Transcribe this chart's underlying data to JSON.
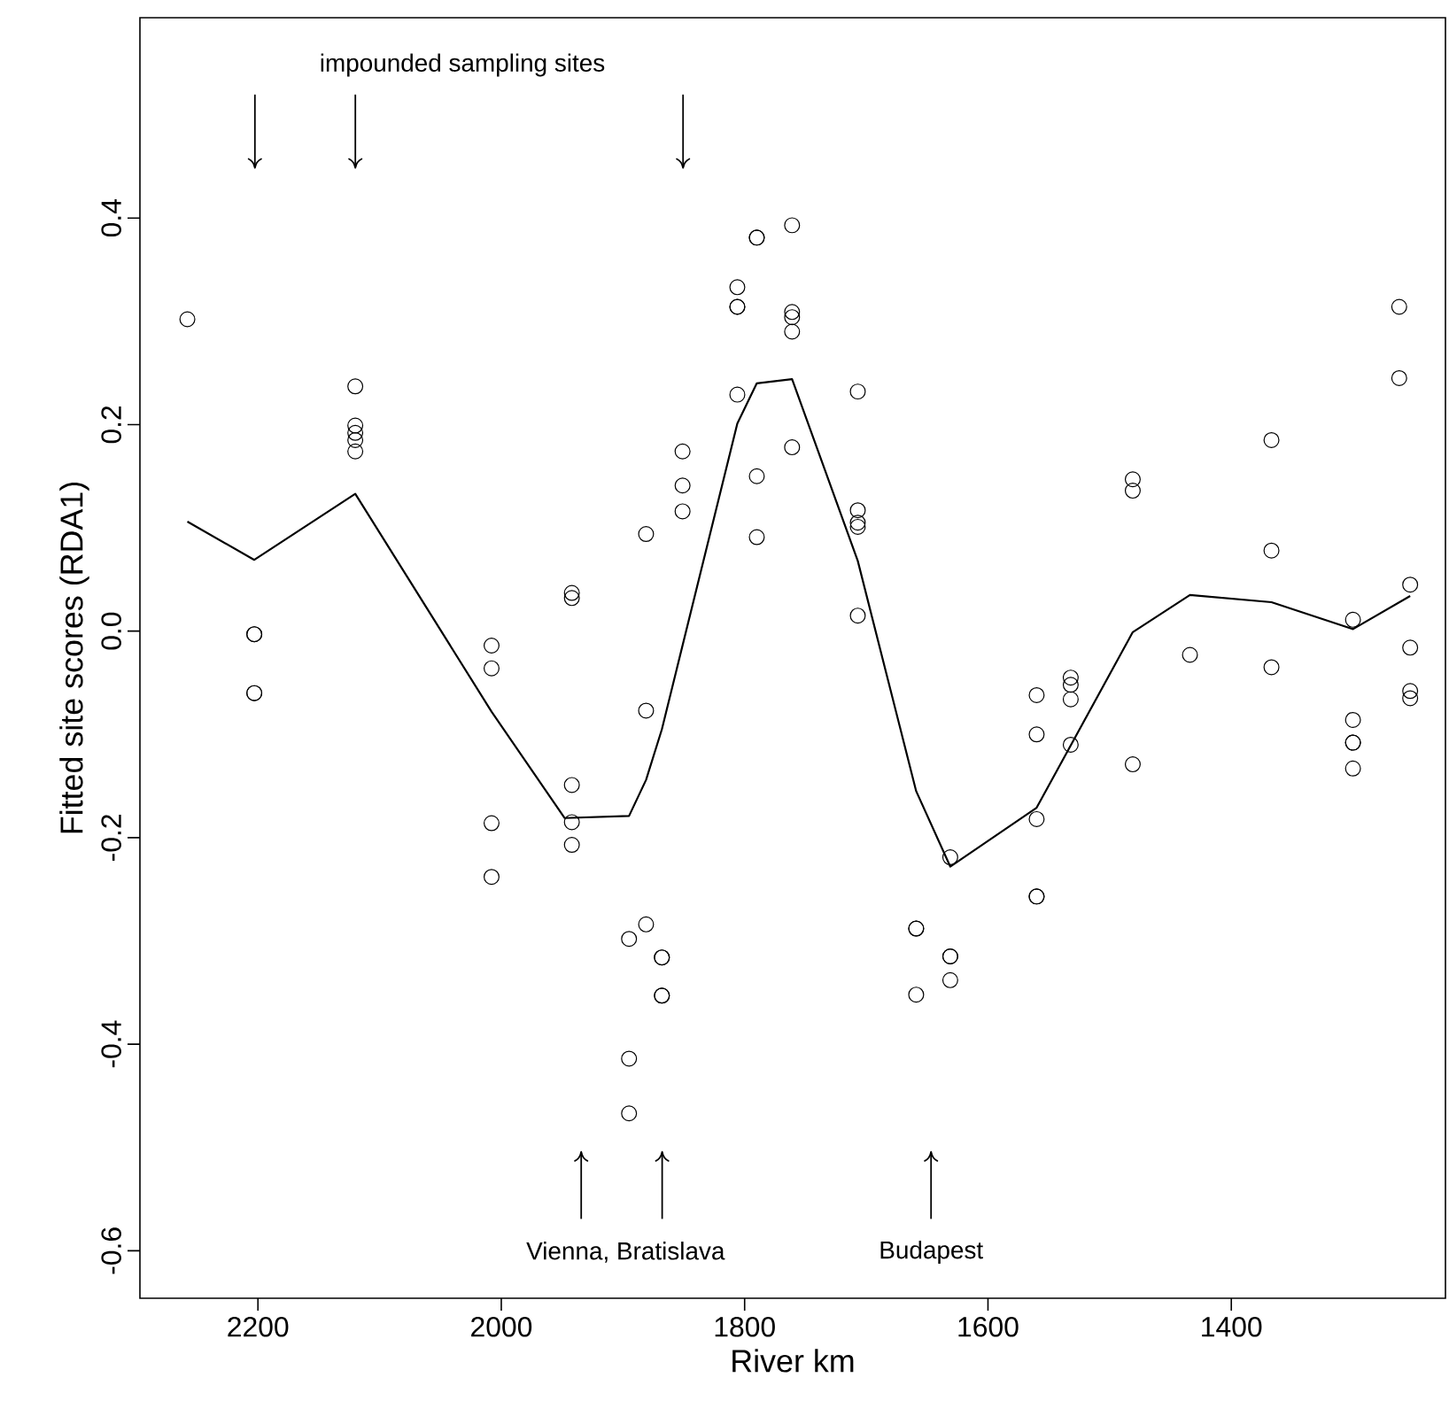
{
  "chart_data": {
    "type": "scatter",
    "xlabel": "River km",
    "ylabel": "Fitted site scores (RDA1)",
    "xlim": [
      2297,
      1224
    ],
    "ylim": [
      -0.646,
      0.594
    ],
    "xticks": [
      2200,
      2000,
      1800,
      1600,
      1400
    ],
    "yticks": [
      -0.6,
      -0.4,
      -0.2,
      {
        "value": 0,
        "label": "0.0"
      },
      0.2,
      0.4
    ],
    "annotations": [
      "impounded sampling sites",
      "Vienna, Bratislava",
      "Budapest"
    ],
    "series": [
      {
        "color": "#000000",
        "marker": "circle",
        "x": [
          2258,
          2203,
          2203,
          2203,
          2203,
          2120,
          2120,
          2120,
          2120,
          2120,
          2008,
          2008,
          2008,
          2008,
          1942,
          1942,
          1942,
          1942,
          1942,
          1895,
          1895,
          1895,
          1881,
          1881,
          1881,
          1868,
          1868,
          1868,
          1868,
          1851,
          1851,
          1851,
          1806,
          1806,
          1806,
          1806,
          1790,
          1790,
          1790,
          1790,
          1761,
          1761,
          1761,
          1761,
          1761,
          1707,
          1707,
          1707,
          1707,
          1707,
          1659,
          1659,
          1659,
          1631,
          1631,
          1631,
          1631,
          1560,
          1560,
          1560,
          1560,
          1560,
          1532,
          1532,
          1532,
          1532,
          1481,
          1481,
          1481,
          1434,
          1367,
          1367,
          1367,
          1300,
          1300,
          1300,
          1300,
          1300,
          1262,
          1262,
          1253,
          1253,
          1253,
          1253
        ],
        "values": [
          0.302,
          -0.003,
          -0.003,
          -0.06,
          -0.06,
          0.237,
          0.199,
          0.192,
          0.185,
          0.174,
          -0.014,
          -0.036,
          -0.186,
          -0.238,
          0.037,
          0.032,
          -0.149,
          -0.185,
          -0.207,
          -0.298,
          -0.414,
          -0.467,
          0.094,
          -0.077,
          -0.284,
          -0.316,
          -0.316,
          -0.353,
          -0.353,
          0.174,
          0.141,
          0.116,
          0.333,
          0.314,
          0.314,
          0.229,
          0.381,
          0.381,
          0.15,
          0.091,
          0.393,
          0.309,
          0.304,
          0.29,
          0.178,
          0.232,
          0.117,
          0.105,
          0.101,
          0.015,
          -0.288,
          -0.288,
          -0.352,
          -0.219,
          -0.315,
          -0.315,
          -0.338,
          -0.062,
          -0.1,
          -0.182,
          -0.257,
          -0.257,
          -0.045,
          -0.052,
          -0.066,
          -0.11,
          0.147,
          0.136,
          -0.129,
          -0.023,
          0.185,
          0.078,
          -0.035,
          0.011,
          -0.086,
          -0.108,
          -0.108,
          -0.133,
          0.314,
          0.245,
          0.045,
          -0.016,
          -0.058,
          -0.065
        ]
      },
      {
        "type": "line",
        "color": "#000000",
        "marker": "none",
        "line_style": "solid",
        "x": [
          2258,
          2203,
          2120,
          2008,
          1948,
          1895,
          1881,
          1868,
          1806,
          1790,
          1761,
          1707,
          1659,
          1631,
          1560,
          1481,
          1434,
          1367,
          1300,
          1253
        ],
        "values": [
          0.106,
          0.069,
          0.133,
          -0.078,
          -0.181,
          -0.179,
          -0.144,
          -0.095,
          0.201,
          0.24,
          0.244,
          0.068,
          -0.155,
          -0.228,
          -0.171,
          -0.001,
          0.035,
          0.028,
          0.002,
          0.034
        ]
      }
    ]
  }
}
